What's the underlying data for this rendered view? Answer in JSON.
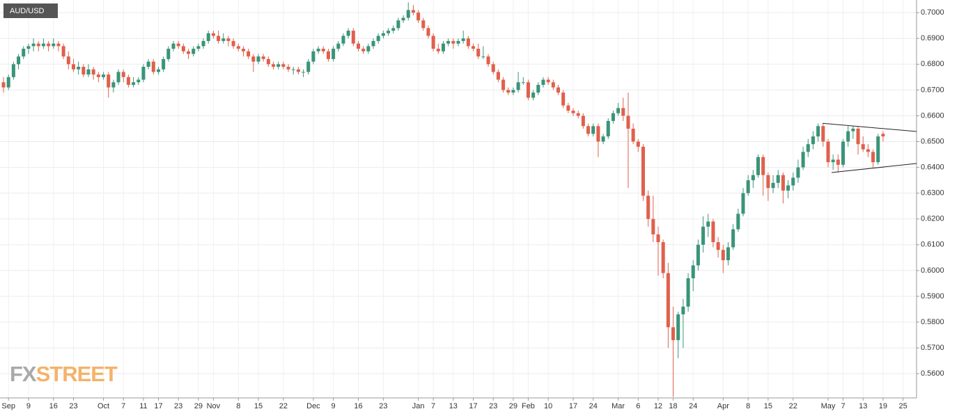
{
  "chart_data": {
    "type": "candlestick",
    "title": "AUD/USD",
    "watermark": [
      "FX",
      "STREET"
    ],
    "up_color": "#3a9479",
    "down_color": "#e0604c",
    "grid": true,
    "xlim": [
      -0.7,
      182.7
    ],
    "ylim": [
      0.5506,
      0.7049
    ],
    "yticks": [
      {
        "value": 0.56,
        "label": "0.5600"
      },
      {
        "value": 0.57,
        "label": "0.5700"
      },
      {
        "value": 0.58,
        "label": "0.5800"
      },
      {
        "value": 0.59,
        "label": "0.5900"
      },
      {
        "value": 0.6,
        "label": "0.6000"
      },
      {
        "value": 0.61,
        "label": "0.6100"
      },
      {
        "value": 0.62,
        "label": "0.6200"
      },
      {
        "value": 0.63,
        "label": "0.6300"
      },
      {
        "value": 0.64,
        "label": "0.6400"
      },
      {
        "value": 0.65,
        "label": "0.6500"
      },
      {
        "value": 0.66,
        "label": "0.6600"
      },
      {
        "value": 0.67,
        "label": "0.6700"
      },
      {
        "value": 0.68,
        "label": "0.6800"
      },
      {
        "value": 0.69,
        "label": "0.6900"
      },
      {
        "value": 0.7,
        "label": "0.7000"
      }
    ],
    "xticks": [
      {
        "value": 1,
        "label": "Sep"
      },
      {
        "value": 5,
        "label": "9"
      },
      {
        "value": 10,
        "label": "16"
      },
      {
        "value": 14,
        "label": "23"
      },
      {
        "value": 20,
        "label": "Oct"
      },
      {
        "value": 24,
        "label": "7"
      },
      {
        "value": 28,
        "label": "11"
      },
      {
        "value": 31,
        "label": "17"
      },
      {
        "value": 35,
        "label": "23"
      },
      {
        "value": 39,
        "label": "29"
      },
      {
        "value": 42,
        "label": "Nov"
      },
      {
        "value": 47,
        "label": "8"
      },
      {
        "value": 51,
        "label": "15"
      },
      {
        "value": 56,
        "label": "22"
      },
      {
        "value": 62,
        "label": "Dec"
      },
      {
        "value": 66,
        "label": "9"
      },
      {
        "value": 71,
        "label": "16"
      },
      {
        "value": 76,
        "label": "23"
      },
      {
        "value": 83,
        "label": "Jan"
      },
      {
        "value": 86,
        "label": "7"
      },
      {
        "value": 90,
        "label": "13"
      },
      {
        "value": 94,
        "label": "17"
      },
      {
        "value": 98,
        "label": "23"
      },
      {
        "value": 102,
        "label": "29"
      },
      {
        "value": 105,
        "label": "Feb"
      },
      {
        "value": 109,
        "label": "10"
      },
      {
        "value": 114,
        "label": "17"
      },
      {
        "value": 118,
        "label": "24"
      },
      {
        "value": 123,
        "label": "Mar"
      },
      {
        "value": 127,
        "label": "6"
      },
      {
        "value": 131,
        "label": "12"
      },
      {
        "value": 134,
        "label": "18"
      },
      {
        "value": 138,
        "label": "24"
      },
      {
        "value": 144,
        "label": "Apr"
      },
      {
        "value": 149,
        "label": "8"
      },
      {
        "value": 153,
        "label": "15"
      },
      {
        "value": 158,
        "label": "22"
      },
      {
        "value": 165,
        "label": "May"
      },
      {
        "value": 168,
        "label": "7"
      },
      {
        "value": 172,
        "label": "13"
      },
      {
        "value": 176,
        "label": "19"
      },
      {
        "value": 180,
        "label": "25"
      }
    ],
    "trendlines": [
      {
        "x": [
          163.9,
          182.7
        ],
        "y": [
          0.6571,
          0.6539
        ]
      },
      {
        "x": [
          165.7,
          182.7
        ],
        "y": [
          0.638,
          0.6415
        ]
      }
    ],
    "candles": [
      [
        0.673,
        0.675,
        0.669,
        0.671
      ],
      [
        0.671,
        0.676,
        0.67,
        0.675
      ],
      [
        0.675,
        0.681,
        0.674,
        0.68
      ],
      [
        0.68,
        0.684,
        0.678,
        0.683
      ],
      [
        0.683,
        0.687,
        0.682,
        0.686
      ],
      [
        0.686,
        0.688,
        0.684,
        0.687
      ],
      [
        0.687,
        0.69,
        0.685,
        0.688
      ],
      [
        0.688,
        0.689,
        0.685,
        0.687
      ],
      [
        0.687,
        0.69,
        0.686,
        0.688
      ],
      [
        0.688,
        0.689,
        0.685,
        0.687
      ],
      [
        0.687,
        0.69,
        0.686,
        0.688
      ],
      [
        0.688,
        0.689,
        0.685,
        0.687
      ],
      [
        0.687,
        0.688,
        0.682,
        0.683
      ],
      [
        0.683,
        0.685,
        0.678,
        0.68
      ],
      [
        0.68,
        0.682,
        0.677,
        0.678
      ],
      [
        0.678,
        0.681,
        0.676,
        0.679
      ],
      [
        0.679,
        0.68,
        0.675,
        0.676
      ],
      [
        0.676,
        0.68,
        0.675,
        0.678
      ],
      [
        0.678,
        0.679,
        0.674,
        0.676
      ],
      [
        0.676,
        0.677,
        0.673,
        0.675
      ],
      [
        0.675,
        0.677,
        0.674,
        0.676
      ],
      [
        0.676,
        0.677,
        0.667,
        0.671
      ],
      [
        0.671,
        0.674,
        0.669,
        0.673
      ],
      [
        0.673,
        0.678,
        0.672,
        0.677
      ],
      [
        0.677,
        0.678,
        0.673,
        0.675
      ],
      [
        0.675,
        0.676,
        0.671,
        0.672
      ],
      [
        0.672,
        0.675,
        0.671,
        0.673
      ],
      [
        0.673,
        0.675,
        0.672,
        0.674
      ],
      [
        0.674,
        0.68,
        0.673,
        0.679
      ],
      [
        0.679,
        0.682,
        0.678,
        0.681
      ],
      [
        0.681,
        0.682,
        0.676,
        0.677
      ],
      [
        0.677,
        0.679,
        0.676,
        0.678
      ],
      [
        0.678,
        0.683,
        0.677,
        0.682
      ],
      [
        0.682,
        0.687,
        0.681,
        0.686
      ],
      [
        0.686,
        0.689,
        0.685,
        0.688
      ],
      [
        0.688,
        0.689,
        0.686,
        0.687
      ],
      [
        0.687,
        0.688,
        0.684,
        0.685
      ],
      [
        0.685,
        0.686,
        0.682,
        0.684
      ],
      [
        0.684,
        0.687,
        0.683,
        0.686
      ],
      [
        0.686,
        0.688,
        0.685,
        0.687
      ],
      [
        0.687,
        0.69,
        0.686,
        0.689
      ],
      [
        0.689,
        0.693,
        0.688,
        0.692
      ],
      [
        0.692,
        0.693,
        0.69,
        0.691
      ],
      [
        0.691,
        0.693,
        0.688,
        0.689
      ],
      [
        0.689,
        0.692,
        0.688,
        0.69
      ],
      [
        0.69,
        0.691,
        0.687,
        0.689
      ],
      [
        0.689,
        0.69,
        0.686,
        0.687
      ],
      [
        0.687,
        0.688,
        0.685,
        0.686
      ],
      [
        0.686,
        0.687,
        0.683,
        0.685
      ],
      [
        0.685,
        0.686,
        0.682,
        0.683
      ],
      [
        0.683,
        0.684,
        0.677,
        0.681
      ],
      [
        0.681,
        0.684,
        0.68,
        0.683
      ],
      [
        0.683,
        0.684,
        0.681,
        0.682
      ],
      [
        0.682,
        0.683,
        0.679,
        0.68
      ],
      [
        0.68,
        0.681,
        0.678,
        0.679
      ],
      [
        0.679,
        0.681,
        0.678,
        0.68
      ],
      [
        0.68,
        0.681,
        0.678,
        0.679
      ],
      [
        0.679,
        0.68,
        0.677,
        0.678
      ],
      [
        0.678,
        0.679,
        0.676,
        0.678
      ],
      [
        0.678,
        0.679,
        0.676,
        0.677
      ],
      [
        0.677,
        0.678,
        0.675,
        0.677
      ],
      [
        0.677,
        0.682,
        0.676,
        0.681
      ],
      [
        0.681,
        0.686,
        0.68,
        0.685
      ],
      [
        0.685,
        0.687,
        0.684,
        0.686
      ],
      [
        0.686,
        0.687,
        0.684,
        0.685
      ],
      [
        0.685,
        0.686,
        0.681,
        0.682
      ],
      [
        0.682,
        0.687,
        0.681,
        0.686
      ],
      [
        0.686,
        0.689,
        0.685,
        0.688
      ],
      [
        0.688,
        0.692,
        0.687,
        0.691
      ],
      [
        0.691,
        0.694,
        0.69,
        0.693
      ],
      [
        0.693,
        0.694,
        0.687,
        0.688
      ],
      [
        0.688,
        0.689,
        0.685,
        0.686
      ],
      [
        0.686,
        0.687,
        0.684,
        0.685
      ],
      [
        0.685,
        0.688,
        0.684,
        0.687
      ],
      [
        0.687,
        0.69,
        0.686,
        0.689
      ],
      [
        0.689,
        0.692,
        0.688,
        0.691
      ],
      [
        0.691,
        0.693,
        0.69,
        0.692
      ],
      [
        0.692,
        0.694,
        0.691,
        0.693
      ],
      [
        0.693,
        0.695,
        0.692,
        0.694
      ],
      [
        0.694,
        0.698,
        0.693,
        0.697
      ],
      [
        0.697,
        0.699,
        0.696,
        0.698
      ],
      [
        0.698,
        0.704,
        0.697,
        0.701
      ],
      [
        0.701,
        0.703,
        0.699,
        0.7
      ],
      [
        0.7,
        0.701,
        0.696,
        0.697
      ],
      [
        0.697,
        0.698,
        0.693,
        0.694
      ],
      [
        0.694,
        0.695,
        0.69,
        0.691
      ],
      [
        0.691,
        0.692,
        0.685,
        0.686
      ],
      [
        0.686,
        0.688,
        0.684,
        0.685
      ],
      [
        0.685,
        0.689,
        0.684,
        0.688
      ],
      [
        0.688,
        0.69,
        0.687,
        0.689
      ],
      [
        0.689,
        0.69,
        0.686,
        0.688
      ],
      [
        0.688,
        0.69,
        0.687,
        0.689
      ],
      [
        0.689,
        0.693,
        0.688,
        0.69
      ],
      [
        0.69,
        0.691,
        0.686,
        0.687
      ],
      [
        0.687,
        0.688,
        0.685,
        0.686
      ],
      [
        0.686,
        0.688,
        0.682,
        0.683
      ],
      [
        0.683,
        0.687,
        0.682,
        0.683
      ],
      [
        0.683,
        0.684,
        0.679,
        0.68
      ],
      [
        0.68,
        0.681,
        0.676,
        0.677
      ],
      [
        0.677,
        0.678,
        0.673,
        0.674
      ],
      [
        0.674,
        0.675,
        0.669,
        0.67
      ],
      [
        0.67,
        0.671,
        0.668,
        0.669
      ],
      [
        0.669,
        0.671,
        0.668,
        0.67
      ],
      [
        0.67,
        0.677,
        0.669,
        0.673
      ],
      [
        0.673,
        0.675,
        0.672,
        0.673
      ],
      [
        0.673,
        0.674,
        0.666,
        0.667
      ],
      [
        0.667,
        0.67,
        0.666,
        0.669
      ],
      [
        0.669,
        0.673,
        0.668,
        0.672
      ],
      [
        0.672,
        0.675,
        0.671,
        0.674
      ],
      [
        0.674,
        0.675,
        0.672,
        0.673
      ],
      [
        0.673,
        0.674,
        0.67,
        0.671
      ],
      [
        0.671,
        0.672,
        0.668,
        0.669
      ],
      [
        0.669,
        0.67,
        0.663,
        0.664
      ],
      [
        0.664,
        0.665,
        0.661,
        0.662
      ],
      [
        0.662,
        0.663,
        0.66,
        0.661
      ],
      [
        0.661,
        0.662,
        0.659,
        0.66
      ],
      [
        0.66,
        0.661,
        0.655,
        0.656
      ],
      [
        0.656,
        0.657,
        0.652,
        0.653
      ],
      [
        0.653,
        0.657,
        0.652,
        0.656
      ],
      [
        0.656,
        0.657,
        0.644,
        0.65
      ],
      [
        0.65,
        0.653,
        0.649,
        0.652
      ],
      [
        0.652,
        0.659,
        0.651,
        0.658
      ],
      [
        0.658,
        0.662,
        0.657,
        0.661
      ],
      [
        0.661,
        0.665,
        0.66,
        0.663
      ],
      [
        0.663,
        0.667,
        0.658,
        0.66
      ],
      [
        0.66,
        0.669,
        0.632,
        0.655
      ],
      [
        0.655,
        0.657,
        0.649,
        0.65
      ],
      [
        0.65,
        0.651,
        0.646,
        0.648
      ],
      [
        0.648,
        0.649,
        0.627,
        0.629
      ],
      [
        0.629,
        0.631,
        0.617,
        0.62
      ],
      [
        0.62,
        0.629,
        0.611,
        0.614
      ],
      [
        0.614,
        0.617,
        0.598,
        0.611
      ],
      [
        0.611,
        0.612,
        0.597,
        0.599
      ],
      [
        0.599,
        0.603,
        0.57,
        0.578
      ],
      [
        0.578,
        0.586,
        0.551,
        0.573
      ],
      [
        0.573,
        0.584,
        0.566,
        0.583
      ],
      [
        0.583,
        0.589,
        0.57,
        0.586
      ],
      [
        0.586,
        0.599,
        0.584,
        0.597
      ],
      [
        0.597,
        0.604,
        0.592,
        0.602
      ],
      [
        0.602,
        0.612,
        0.6,
        0.61
      ],
      [
        0.61,
        0.621,
        0.607,
        0.617
      ],
      [
        0.617,
        0.622,
        0.613,
        0.619
      ],
      [
        0.619,
        0.62,
        0.609,
        0.611
      ],
      [
        0.611,
        0.613,
        0.605,
        0.608
      ],
      [
        0.608,
        0.61,
        0.599,
        0.604
      ],
      [
        0.604,
        0.611,
        0.602,
        0.609
      ],
      [
        0.609,
        0.618,
        0.608,
        0.616
      ],
      [
        0.616,
        0.624,
        0.615,
        0.622
      ],
      [
        0.622,
        0.632,
        0.621,
        0.63
      ],
      [
        0.63,
        0.637,
        0.629,
        0.635
      ],
      [
        0.635,
        0.639,
        0.632,
        0.637
      ],
      [
        0.637,
        0.645,
        0.636,
        0.644
      ],
      [
        0.644,
        0.645,
        0.629,
        0.637
      ],
      [
        0.637,
        0.638,
        0.627,
        0.632
      ],
      [
        0.632,
        0.637,
        0.63,
        0.634
      ],
      [
        0.634,
        0.639,
        0.632,
        0.637
      ],
      [
        0.637,
        0.638,
        0.626,
        0.631
      ],
      [
        0.631,
        0.635,
        0.628,
        0.633
      ],
      [
        0.633,
        0.638,
        0.631,
        0.636
      ],
      [
        0.636,
        0.643,
        0.634,
        0.64
      ],
      [
        0.64,
        0.648,
        0.639,
        0.646
      ],
      [
        0.646,
        0.651,
        0.644,
        0.649
      ],
      [
        0.649,
        0.654,
        0.647,
        0.652
      ],
      [
        0.652,
        0.657,
        0.65,
        0.656
      ],
      [
        0.656,
        0.657,
        0.648,
        0.65
      ],
      [
        0.65,
        0.651,
        0.64,
        0.642
      ],
      [
        0.642,
        0.645,
        0.639,
        0.643
      ],
      [
        0.643,
        0.645,
        0.638,
        0.641
      ],
      [
        0.641,
        0.651,
        0.64,
        0.65
      ],
      [
        0.65,
        0.656,
        0.648,
        0.654
      ],
      [
        0.654,
        0.656,
        0.651,
        0.655
      ],
      [
        0.655,
        0.656,
        0.645,
        0.649
      ],
      [
        0.649,
        0.652,
        0.646,
        0.647
      ],
      [
        0.647,
        0.649,
        0.644,
        0.646
      ],
      [
        0.646,
        0.647,
        0.64,
        0.642
      ],
      [
        0.642,
        0.653,
        0.641,
        0.652
      ],
      [
        0.653,
        0.654,
        0.65,
        0.652
      ]
    ]
  }
}
